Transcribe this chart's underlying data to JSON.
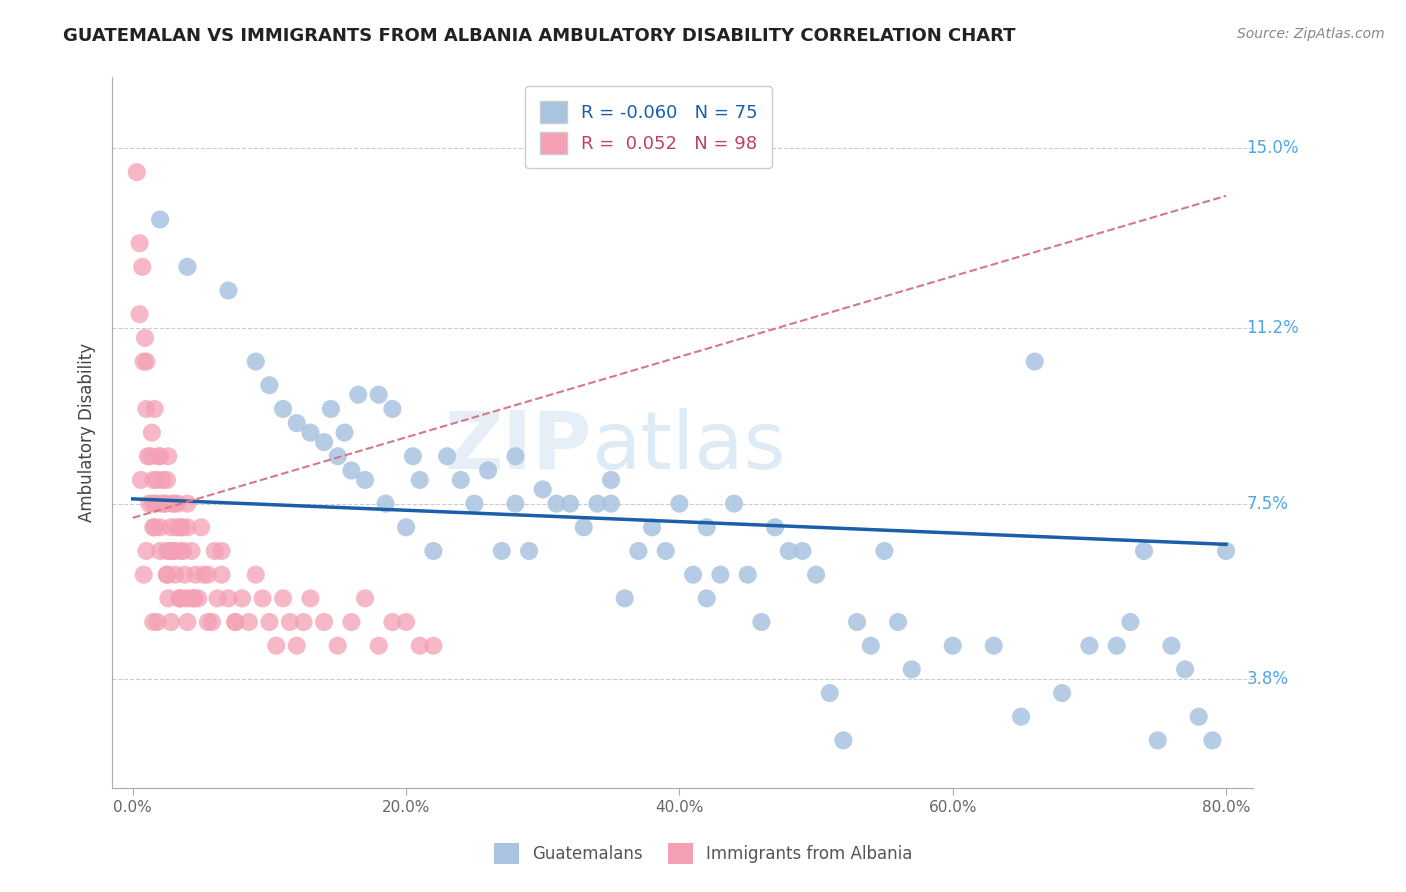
{
  "title": "GUATEMALAN VS IMMIGRANTS FROM ALBANIA AMBULATORY DISABILITY CORRELATION CHART",
  "source": "Source: ZipAtlas.com",
  "ylabel": "Ambulatory Disability",
  "xlabel_ticks": [
    "0.0%",
    "20.0%",
    "40.0%",
    "60.0%",
    "80.0%"
  ],
  "xlabel_vals": [
    0.0,
    20.0,
    40.0,
    60.0,
    80.0
  ],
  "ytick_vals": [
    3.8,
    7.5,
    11.2,
    15.0
  ],
  "ytick_labels": [
    "3.8%",
    "7.5%",
    "11.2%",
    "15.0%"
  ],
  "xlim": [
    -1.5,
    82
  ],
  "ylim": [
    1.5,
    16.5
  ],
  "watermark": "ZIPatlas",
  "legend_blue_R": "-0.060",
  "legend_blue_N": "75",
  "legend_pink_R": "0.052",
  "legend_pink_N": "98",
  "blue_color": "#a8c4e0",
  "pink_color": "#f4a0b5",
  "trendline_blue_color": "#1a5fa8",
  "trendline_pink_color": "#d4788a",
  "blue_intercept": 7.6,
  "blue_slope": -0.012,
  "pink_intercept": 7.2,
  "pink_slope": 0.085,
  "guatemalans_x": [
    2.0,
    4.0,
    7.0,
    9.0,
    10.0,
    11.0,
    12.0,
    13.0,
    14.0,
    14.5,
    15.0,
    15.5,
    16.0,
    16.5,
    17.0,
    18.0,
    18.5,
    19.0,
    20.0,
    20.5,
    21.0,
    22.0,
    23.0,
    24.0,
    25.0,
    26.0,
    27.0,
    28.0,
    29.0,
    30.0,
    31.0,
    32.0,
    33.0,
    34.0,
    35.0,
    36.0,
    37.0,
    38.0,
    39.0,
    40.0,
    41.0,
    42.0,
    43.0,
    44.0,
    45.0,
    46.0,
    47.0,
    48.0,
    49.0,
    50.0,
    51.0,
    52.0,
    53.0,
    54.0,
    55.0,
    56.0,
    57.0,
    60.0,
    63.0,
    65.0,
    66.0,
    68.0,
    70.0,
    72.0,
    73.0,
    74.0,
    75.0,
    76.0,
    77.0,
    78.0,
    79.0,
    80.0,
    35.0,
    42.0,
    28.0
  ],
  "guatemalans_y": [
    13.5,
    12.5,
    12.0,
    10.5,
    10.0,
    9.5,
    9.2,
    9.0,
    8.8,
    9.5,
    8.5,
    9.0,
    8.2,
    9.8,
    8.0,
    9.8,
    7.5,
    9.5,
    7.0,
    8.5,
    8.0,
    6.5,
    8.5,
    8.0,
    7.5,
    8.2,
    6.5,
    7.5,
    6.5,
    7.8,
    7.5,
    7.5,
    7.0,
    7.5,
    7.5,
    5.5,
    6.5,
    7.0,
    6.5,
    7.5,
    6.0,
    5.5,
    6.0,
    7.5,
    6.0,
    5.0,
    7.0,
    6.5,
    6.5,
    6.0,
    3.5,
    2.5,
    5.0,
    4.5,
    6.5,
    5.0,
    4.0,
    4.5,
    4.5,
    3.0,
    10.5,
    3.5,
    4.5,
    4.5,
    5.0,
    6.5,
    2.5,
    4.5,
    4.0,
    3.0,
    2.5,
    6.5,
    8.0,
    7.0,
    8.5
  ],
  "albania_x": [
    0.3,
    0.5,
    0.5,
    0.7,
    0.8,
    0.9,
    1.0,
    1.0,
    1.1,
    1.2,
    1.3,
    1.4,
    1.5,
    1.5,
    1.6,
    1.7,
    1.8,
    1.9,
    2.0,
    2.0,
    2.1,
    2.2,
    2.3,
    2.4,
    2.5,
    2.5,
    2.6,
    2.7,
    2.8,
    2.9,
    3.0,
    3.0,
    3.1,
    3.2,
    3.3,
    3.4,
    3.5,
    3.5,
    3.6,
    3.7,
    3.8,
    3.9,
    4.0,
    4.0,
    4.2,
    4.3,
    4.5,
    4.6,
    4.8,
    5.0,
    5.2,
    5.5,
    5.8,
    6.0,
    6.2,
    6.5,
    7.0,
    7.5,
    8.0,
    8.5,
    9.0,
    9.5,
    10.0,
    10.5,
    11.0,
    11.5,
    12.0,
    12.5,
    13.0,
    14.0,
    15.0,
    16.0,
    17.0,
    18.0,
    19.0,
    20.0,
    21.0,
    22.0,
    1.5,
    2.5,
    3.5,
    4.5,
    5.5,
    6.5,
    7.5,
    1.0,
    2.0,
    3.0,
    1.5,
    2.5,
    3.5,
    0.8,
    1.8,
    2.8,
    4.0,
    0.6,
    1.6,
    2.6
  ],
  "albania_y": [
    14.5,
    13.0,
    11.5,
    12.5,
    10.5,
    11.0,
    9.5,
    10.5,
    8.5,
    7.5,
    8.5,
    9.0,
    7.0,
    8.0,
    9.5,
    7.5,
    8.0,
    8.5,
    8.5,
    7.0,
    7.5,
    8.0,
    7.5,
    7.5,
    8.0,
    6.5,
    8.5,
    6.5,
    7.0,
    7.5,
    7.5,
    6.5,
    6.0,
    7.0,
    7.5,
    5.5,
    7.0,
    6.5,
    7.0,
    6.5,
    6.0,
    5.5,
    7.0,
    7.5,
    5.5,
    6.5,
    5.5,
    6.0,
    5.5,
    7.0,
    6.0,
    6.0,
    5.0,
    6.5,
    5.5,
    6.5,
    5.5,
    5.0,
    5.5,
    5.0,
    6.0,
    5.5,
    5.0,
    4.5,
    5.5,
    5.0,
    4.5,
    5.0,
    5.5,
    5.0,
    4.5,
    5.0,
    5.5,
    4.5,
    5.0,
    5.0,
    4.5,
    4.5,
    7.5,
    6.0,
    5.5,
    5.5,
    5.0,
    6.0,
    5.0,
    6.5,
    6.5,
    6.5,
    5.0,
    6.0,
    5.5,
    6.0,
    5.0,
    5.0,
    5.0,
    8.0,
    7.0,
    5.5
  ]
}
